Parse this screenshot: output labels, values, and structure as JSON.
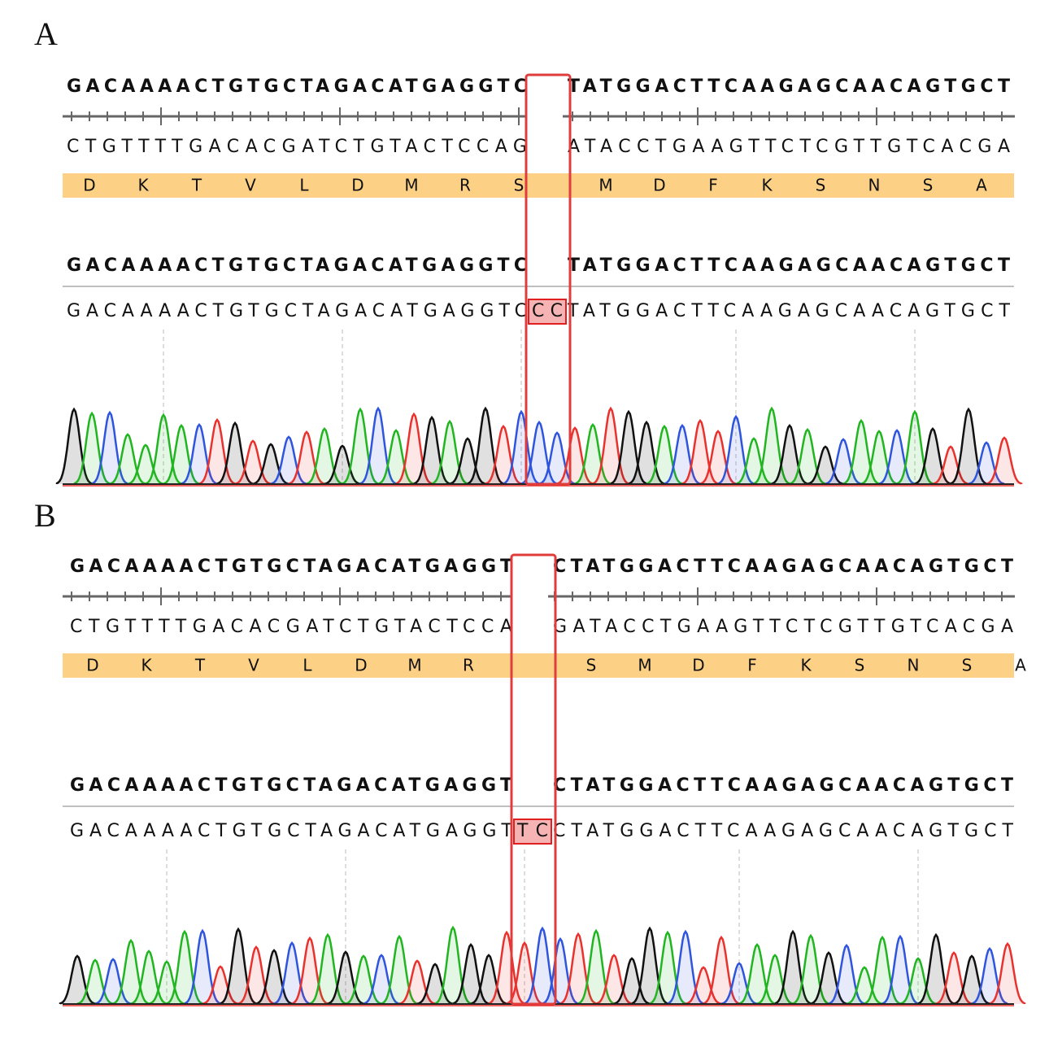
{
  "panels": [
    {
      "label": "A",
      "reference_left": "GACAAAACTGTGCTAGACATGAGGTC",
      "reference_right": "TATGGACTTCAAGAGCAACAGTGCT",
      "complement_left": "CTGTTTTGACACGATCTGTACTCCAG",
      "complement_right": "ATACCTGAAGTTCTCGTTGTCACGA",
      "amino_acids_left": [
        "D",
        "K",
        "T",
        "V",
        "L",
        "D",
        "M",
        "R",
        "S"
      ],
      "amino_acids_right": [
        "M",
        "D",
        "F",
        "K",
        "S",
        "N",
        "S",
        "A"
      ],
      "read_left": "GACAAAACTGTGCTAGACATGAGGTC",
      "read_insert": "CC",
      "read_right": "TATGGACTTCAAGAGCAACAGTGCT"
    },
    {
      "label": "B",
      "reference_left": "GACAAAACTGTGCTAGACATGAGGT",
      "reference_right": "CTATGGACTTCAAGAGCAACAGTGCT",
      "complement_left": "CTGTTTTGACACGATCTGTACTCCA",
      "complement_right": "GATACCTGAAGTTCTCGTTGTCACGA",
      "amino_acids_left": [
        "D",
        "K",
        "T",
        "V",
        "L",
        "D",
        "M",
        "R"
      ],
      "amino_acids_right": [
        "S",
        "M",
        "D",
        "F",
        "K",
        "S",
        "N",
        "S",
        "A"
      ],
      "read_left": "GACAAAACTGTGCTAGACATGAGGT",
      "read_insert": "TC",
      "read_right": "CTATGGACTTCAAGAGCAACAGTGCT"
    }
  ]
}
